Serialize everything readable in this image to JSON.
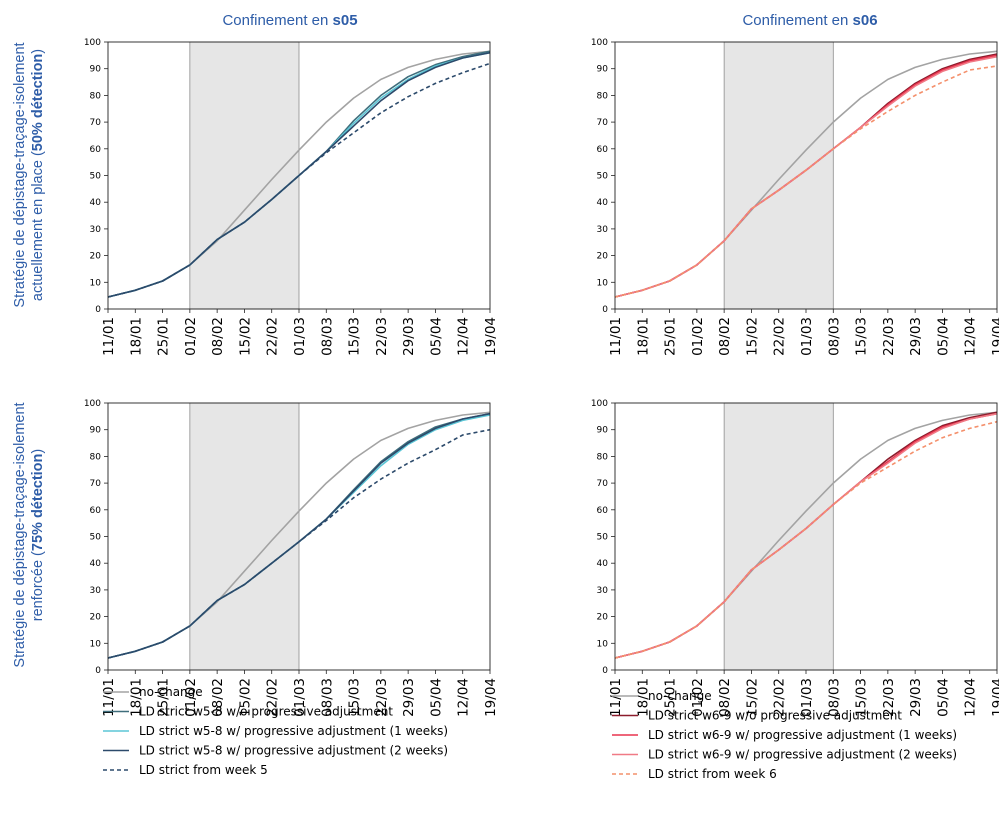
{
  "column_titles": [
    {
      "prefix": "Confinement en ",
      "bold": "s05"
    },
    {
      "prefix": "Confinement en ",
      "bold": "s06"
    }
  ],
  "row_labels": [
    {
      "line1": "Stratégie de dépistage-traçage-isolement",
      "line2_plain": "actuellement en place (",
      "line2_bold": "50% détection",
      "line2_end": ")"
    },
    {
      "line1": "Stratégie de dépistage-traçage-isolement",
      "line2_plain": "renforcée (",
      "line2_bold": "75% détection",
      "line2_end": ")"
    }
  ],
  "legends": [
    {
      "entries": [
        {
          "label": "no-change",
          "color": "#a3a3a3",
          "dash": false
        },
        {
          "label": "LD strict w5-8 w/o progressive adjustment",
          "color": "#3f6e7c",
          "dash": false
        },
        {
          "label": "LD strict w5-8 w/ progressive adjustment (1 weeks)",
          "color": "#5bc6d6",
          "dash": false
        },
        {
          "label": "LD strict w5-8 w/ progressive adjustment (2 weeks)",
          "color": "#2c4a6b",
          "dash": false
        },
        {
          "label": "LD strict from week 5",
          "color": "#2c4a6b",
          "dash": true
        }
      ]
    },
    {
      "entries": [
        {
          "label": "no-change",
          "color": "#a3a3a3",
          "dash": false
        },
        {
          "label": "LD strict w6-9 w/o progressive adjustment",
          "color": "#8c1c2c",
          "dash": false
        },
        {
          "label": "LD strict w6-9 w/ progressive adjustment (1 weeks)",
          "color": "#e8344f",
          "dash": false
        },
        {
          "label": "LD strict w6-9 w/ progressive adjustment (2 weeks)",
          "color": "#f07a86",
          "dash": false
        },
        {
          "label": "LD strict from week 6",
          "color": "#f4906c",
          "dash": true
        }
      ]
    }
  ],
  "chart_data": [
    {
      "type": "line",
      "panel": "top-left",
      "x": [
        "11/01",
        "18/01",
        "25/01",
        "01/02",
        "08/02",
        "15/02",
        "22/02",
        "01/03",
        "08/03",
        "15/03",
        "22/03",
        "29/03",
        "05/04",
        "12/04",
        "19/04"
      ],
      "ylim": [
        0,
        100
      ],
      "yticks": [
        0,
        10,
        20,
        30,
        40,
        50,
        60,
        70,
        80,
        90,
        100
      ],
      "shaded_x_range": [
        "01/02",
        "01/03"
      ],
      "grid": false,
      "series": [
        {
          "name": "no-change",
          "color": "#a3a3a3",
          "dash": false,
          "values": [
            4.5,
            7,
            10.5,
            16.5,
            25.5,
            37,
            48.5,
            59.5,
            70,
            79,
            86,
            90.5,
            93.5,
            95.5,
            96.5
          ]
        },
        {
          "name": "LD strict w5-8 w/o progressive adjustment",
          "color": "#3f6e7c",
          "dash": false,
          "values": [
            4.5,
            7,
            10.5,
            16.5,
            26,
            32.5,
            41,
            50,
            59,
            70.5,
            80,
            87,
            91.5,
            94.5,
            96.5
          ]
        },
        {
          "name": "LD strict w5-8 w/ progressive adjustment (1 weeks)",
          "color": "#5bc6d6",
          "dash": false,
          "values": [
            4.5,
            7,
            10.5,
            16.5,
            26,
            32.5,
            41,
            50,
            59,
            69.5,
            79,
            86,
            91,
            94,
            96
          ]
        },
        {
          "name": "LD strict w5-8 w/ progressive adjustment (2 weeks)",
          "color": "#2c4a6b",
          "dash": false,
          "values": [
            4.5,
            7,
            10.5,
            16.5,
            26,
            32.5,
            41,
            50,
            59,
            68.5,
            78,
            85.5,
            90.5,
            94,
            96
          ]
        },
        {
          "name": "LD strict from week 5",
          "color": "#2c4a6b",
          "dash": true,
          "values": [
            4.5,
            7,
            10.5,
            16.5,
            26,
            32.5,
            41,
            50,
            58.5,
            66,
            73.5,
            79.5,
            84.5,
            88.5,
            92
          ]
        }
      ]
    },
    {
      "type": "line",
      "panel": "top-right",
      "x": [
        "11/01",
        "18/01",
        "25/01",
        "01/02",
        "08/02",
        "15/02",
        "22/02",
        "01/03",
        "08/03",
        "15/03",
        "22/03",
        "29/03",
        "05/04",
        "12/04",
        "19/04"
      ],
      "ylim": [
        0,
        100
      ],
      "yticks": [
        0,
        10,
        20,
        30,
        40,
        50,
        60,
        70,
        80,
        90,
        100
      ],
      "shaded_x_range": [
        "08/02",
        "08/03"
      ],
      "grid": false,
      "series": [
        {
          "name": "no-change",
          "color": "#a3a3a3",
          "dash": false,
          "values": [
            4.5,
            7,
            10.5,
            16.5,
            25.5,
            37,
            48.5,
            59.5,
            70,
            79,
            86,
            90.5,
            93.5,
            95.5,
            96.5
          ]
        },
        {
          "name": "LD strict w6-9 w/o progressive adjustment",
          "color": "#8c1c2c",
          "dash": false,
          "values": [
            4.5,
            7,
            10.5,
            16.5,
            25.5,
            37.5,
            44.5,
            52,
            60,
            68,
            77,
            84.5,
            90,
            93.5,
            95.5
          ]
        },
        {
          "name": "LD strict w6-9 w/ progressive adjustment (1 weeks)",
          "color": "#e8344f",
          "dash": false,
          "values": [
            4.5,
            7,
            10.5,
            16.5,
            25.5,
            37.5,
            44.5,
            52,
            60,
            68,
            76.5,
            84,
            89.5,
            93,
            95
          ]
        },
        {
          "name": "LD strict w6-9 w/ progressive adjustment (2 weeks)",
          "color": "#f07a86",
          "dash": false,
          "values": [
            4.5,
            7,
            10.5,
            16.5,
            25.5,
            37.5,
            44.5,
            52,
            60,
            68,
            76,
            83.5,
            89,
            92.5,
            94.5
          ]
        },
        {
          "name": "LD strict from week 6",
          "color": "#f4906c",
          "dash": true,
          "values": [
            4.5,
            7,
            10.5,
            16.5,
            25.5,
            37.5,
            44.5,
            52,
            60,
            67.5,
            74,
            80,
            85,
            89.5,
            91
          ]
        }
      ]
    },
    {
      "type": "line",
      "panel": "bottom-left",
      "x": [
        "11/01",
        "18/01",
        "25/01",
        "01/02",
        "08/02",
        "15/02",
        "22/02",
        "01/03",
        "08/03",
        "15/03",
        "22/03",
        "29/03",
        "05/04",
        "12/04",
        "19/04"
      ],
      "ylim": [
        0,
        100
      ],
      "yticks": [
        0,
        10,
        20,
        30,
        40,
        50,
        60,
        70,
        80,
        90,
        100
      ],
      "shaded_x_range": [
        "01/02",
        "01/03"
      ],
      "grid": false,
      "series": [
        {
          "name": "no-change",
          "color": "#a3a3a3",
          "dash": false,
          "values": [
            4.5,
            7,
            10.5,
            16.5,
            25.5,
            37,
            48.5,
            59.5,
            70,
            79,
            86,
            90.5,
            93.5,
            95.5,
            96.5
          ]
        },
        {
          "name": "LD strict w5-8 w/o progressive adjustment",
          "color": "#3f6e7c",
          "dash": false,
          "values": [
            4.5,
            7,
            10.5,
            16.5,
            26,
            32,
            40,
            48,
            56.5,
            67.5,
            78,
            85.5,
            91,
            94,
            96
          ]
        },
        {
          "name": "LD strict w5-8 w/ progressive adjustment (1 weeks)",
          "color": "#5bc6d6",
          "dash": false,
          "values": [
            4.5,
            7,
            10.5,
            16.5,
            26,
            32,
            40,
            48,
            56.5,
            66.5,
            76.5,
            84.5,
            90,
            93.5,
            95.5
          ]
        },
        {
          "name": "LD strict w5-8 w/ progressive adjustment (2 weeks)",
          "color": "#2c4a6b",
          "dash": false,
          "values": [
            4.5,
            7,
            10.5,
            16.5,
            26,
            32,
            40,
            48,
            56.5,
            67,
            77.5,
            85,
            90.5,
            94,
            96
          ]
        },
        {
          "name": "LD strict from week 5",
          "color": "#2c4a6b",
          "dash": true,
          "values": [
            4.5,
            7,
            10.5,
            16.5,
            26,
            32,
            40,
            48,
            56,
            64.5,
            71.5,
            77.5,
            82.5,
            88,
            90
          ]
        }
      ]
    },
    {
      "type": "line",
      "panel": "bottom-right",
      "x": [
        "11/01",
        "18/01",
        "25/01",
        "01/02",
        "08/02",
        "15/02",
        "22/02",
        "01/03",
        "08/03",
        "15/03",
        "22/03",
        "29/03",
        "05/04",
        "12/04",
        "19/04"
      ],
      "ylim": [
        0,
        100
      ],
      "yticks": [
        0,
        10,
        20,
        30,
        40,
        50,
        60,
        70,
        80,
        90,
        100
      ],
      "shaded_x_range": [
        "08/02",
        "08/03"
      ],
      "grid": false,
      "series": [
        {
          "name": "no-change",
          "color": "#a3a3a3",
          "dash": false,
          "values": [
            4.5,
            7,
            10.5,
            16.5,
            25.5,
            37,
            48.5,
            59.5,
            70,
            79,
            86,
            90.5,
            93.5,
            95.5,
            96.5
          ]
        },
        {
          "name": "LD strict w6-9 w/o progressive adjustment",
          "color": "#8c1c2c",
          "dash": false,
          "values": [
            4.5,
            7,
            10.5,
            16.5,
            25.5,
            37.5,
            45,
            53,
            62,
            70.5,
            79,
            86,
            91.5,
            94.5,
            96.5
          ]
        },
        {
          "name": "LD strict w6-9 w/ progressive adjustment (1 weeks)",
          "color": "#e8344f",
          "dash": false,
          "values": [
            4.5,
            7,
            10.5,
            16.5,
            25.5,
            37.5,
            45,
            53,
            62,
            70.5,
            78,
            85.5,
            91,
            94,
            96
          ]
        },
        {
          "name": "LD strict w6-9 w/ progressive adjustment (2 weeks)",
          "color": "#f07a86",
          "dash": false,
          "values": [
            4.5,
            7,
            10.5,
            16.5,
            25.5,
            37.5,
            45,
            53,
            62,
            70.5,
            77.5,
            85,
            90.5,
            94,
            96
          ]
        },
        {
          "name": "LD strict from week 6",
          "color": "#f4906c",
          "dash": true,
          "values": [
            4.5,
            7,
            10.5,
            16.5,
            25.5,
            37.5,
            45,
            53,
            62,
            70,
            76,
            82,
            87,
            90.5,
            93
          ]
        }
      ]
    }
  ]
}
